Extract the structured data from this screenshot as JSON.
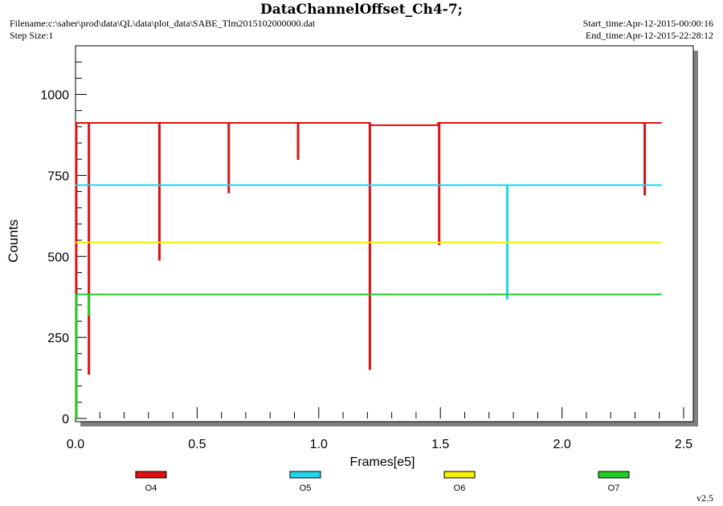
{
  "header": {
    "filename": "Filename:c:\\saber\\prod\\data\\QL\\data\\plot_data\\SABE_Tlm2015102000000.dat",
    "step_size": "Step Size:1",
    "start_time": "Start_time:Apr-12-2015-00:00:16",
    "end_time": "End_time:Apr-12-2015-22:28:12"
  },
  "version": "v2.5",
  "chart_data": {
    "type": "line",
    "title": "DataChannelOffset_Ch4-7;",
    "xlabel": "Frames[e5]",
    "ylabel": "Counts",
    "xlim": [
      0,
      2.5
    ],
    "ylim": [
      0,
      1150
    ],
    "xticks": [
      0.0,
      0.5,
      1.0,
      1.5,
      2.0,
      2.5
    ],
    "xtick_labels": [
      "0.0",
      "0.5",
      "1.0",
      "1.5",
      "2.0",
      "2.5"
    ],
    "yticks": [
      0,
      250,
      500,
      750,
      1000
    ],
    "ytick_labels": [
      "0",
      "250",
      "500",
      "750",
      "1000"
    ],
    "grid": false,
    "legend_position": "bottom",
    "series": [
      {
        "name": "O4",
        "color": "#e01010",
        "baseline": [
          [
            0.0,
            912
          ],
          [
            1.21,
            912
          ],
          [
            1.21,
            905
          ],
          [
            1.49,
            905
          ],
          [
            1.49,
            912
          ],
          [
            2.41,
            912
          ]
        ],
        "spikes": [
          [
            0.003,
            0
          ],
          [
            0.055,
            135
          ],
          [
            0.345,
            487
          ],
          [
            0.63,
            695
          ],
          [
            0.915,
            798
          ],
          [
            1.21,
            150
          ],
          [
            1.495,
            535
          ],
          [
            2.34,
            688
          ]
        ]
      },
      {
        "name": "O5",
        "color": "#22d3ee",
        "baseline": [
          [
            0.0,
            720
          ],
          [
            2.41,
            720
          ]
        ],
        "spikes": [
          [
            1.775,
            367
          ]
        ]
      },
      {
        "name": "O6",
        "color": "#f5f000",
        "baseline": [
          [
            0.0,
            543
          ],
          [
            2.41,
            543
          ]
        ],
        "spikes": []
      },
      {
        "name": "O7",
        "color": "#22cc22",
        "baseline": [
          [
            0.0,
            383
          ],
          [
            2.41,
            383
          ]
        ],
        "spikes": [
          [
            0.003,
            0
          ],
          [
            0.055,
            317
          ]
        ]
      }
    ]
  }
}
